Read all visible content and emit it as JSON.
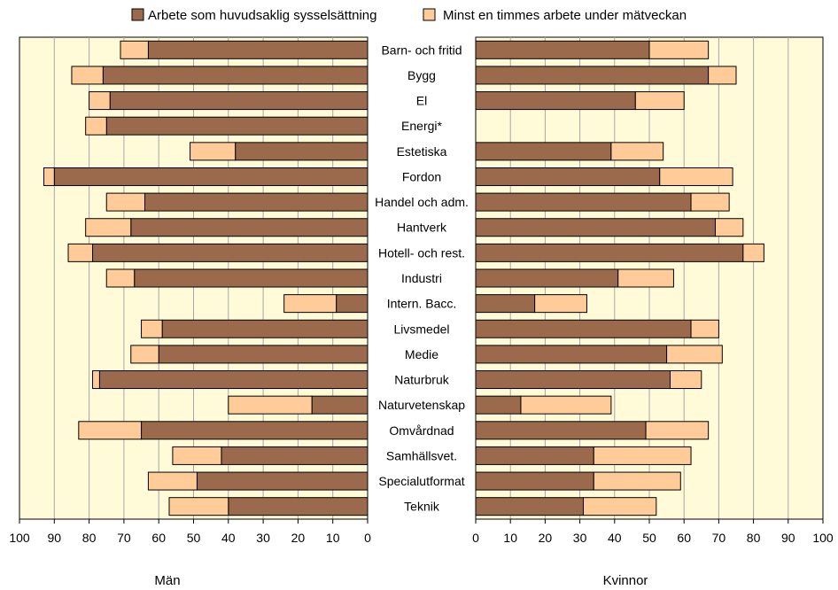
{
  "chart_data": {
    "type": "bar",
    "orientation": "horizontal",
    "stacked": true,
    "layout": "butterfly",
    "legend": {
      "placement": "top",
      "entries": [
        {
          "label": "Arbete som huvudsaklig sysselsättning",
          "color": "#9b6a4c"
        },
        {
          "label": "Minst en timmes arbete under mätveckan",
          "color": "#ffcc99"
        }
      ]
    },
    "colors": {
      "plot_background": "#fffbd9",
      "gridline": "#a6a6a6",
      "bar_edge": "#000000"
    },
    "categories": [
      "Barn- och fritid",
      "Bygg",
      "El",
      "Energi*",
      "Estetiska",
      "Fordon",
      "Handel och adm.",
      "Hantverk",
      "Hotell- och rest.",
      "Industri",
      "Intern. Bacc.",
      "Livsmedel",
      "Medie",
      "Naturbruk",
      "Naturvetenskap",
      "Omvårdnad",
      "Samhällsvet.",
      "Specialutformat",
      "Teknik"
    ],
    "panels": [
      {
        "name": "Män",
        "xlabel": "Män",
        "xlim": [
          0,
          100
        ],
        "reversed": true,
        "ticks": [
          "100",
          "90",
          "80",
          "70",
          "60",
          "50",
          "40",
          "30",
          "20",
          "10",
          "0"
        ],
        "series": [
          {
            "name": "Arbete som huvudsaklig sysselsättning",
            "values": [
              63,
              76,
              74,
              75,
              38,
              90,
              64,
              68,
              79,
              67,
              9,
              59,
              60,
              77,
              16,
              65,
              42,
              49,
              40
            ]
          },
          {
            "name": "Minst en timmes arbete under mätveckan",
            "values": [
              8,
              9,
              6,
              6,
              13,
              3,
              11,
              13,
              7,
              8,
              15,
              6,
              8,
              2,
              24,
              18,
              14,
              14,
              17
            ]
          }
        ]
      },
      {
        "name": "Kvinnor",
        "xlabel": "Kvinnor",
        "xlim": [
          0,
          100
        ],
        "reversed": false,
        "ticks": [
          "0",
          "10",
          "20",
          "30",
          "40",
          "50",
          "60",
          "70",
          "80",
          "90",
          "100"
        ],
        "series": [
          {
            "name": "Arbete som huvudsaklig sysselsättning",
            "values": [
              50,
              67,
              46,
              null,
              39,
              53,
              62,
              69,
              77,
              41,
              17,
              62,
              55,
              56,
              13,
              49,
              34,
              34,
              31
            ]
          },
          {
            "name": "Minst en timmes arbete under mätveckan",
            "values": [
              17,
              8,
              14,
              null,
              15,
              21,
              11,
              8,
              6,
              16,
              15,
              8,
              16,
              9,
              26,
              18,
              28,
              25,
              21
            ]
          }
        ]
      }
    ],
    "grid": true
  }
}
